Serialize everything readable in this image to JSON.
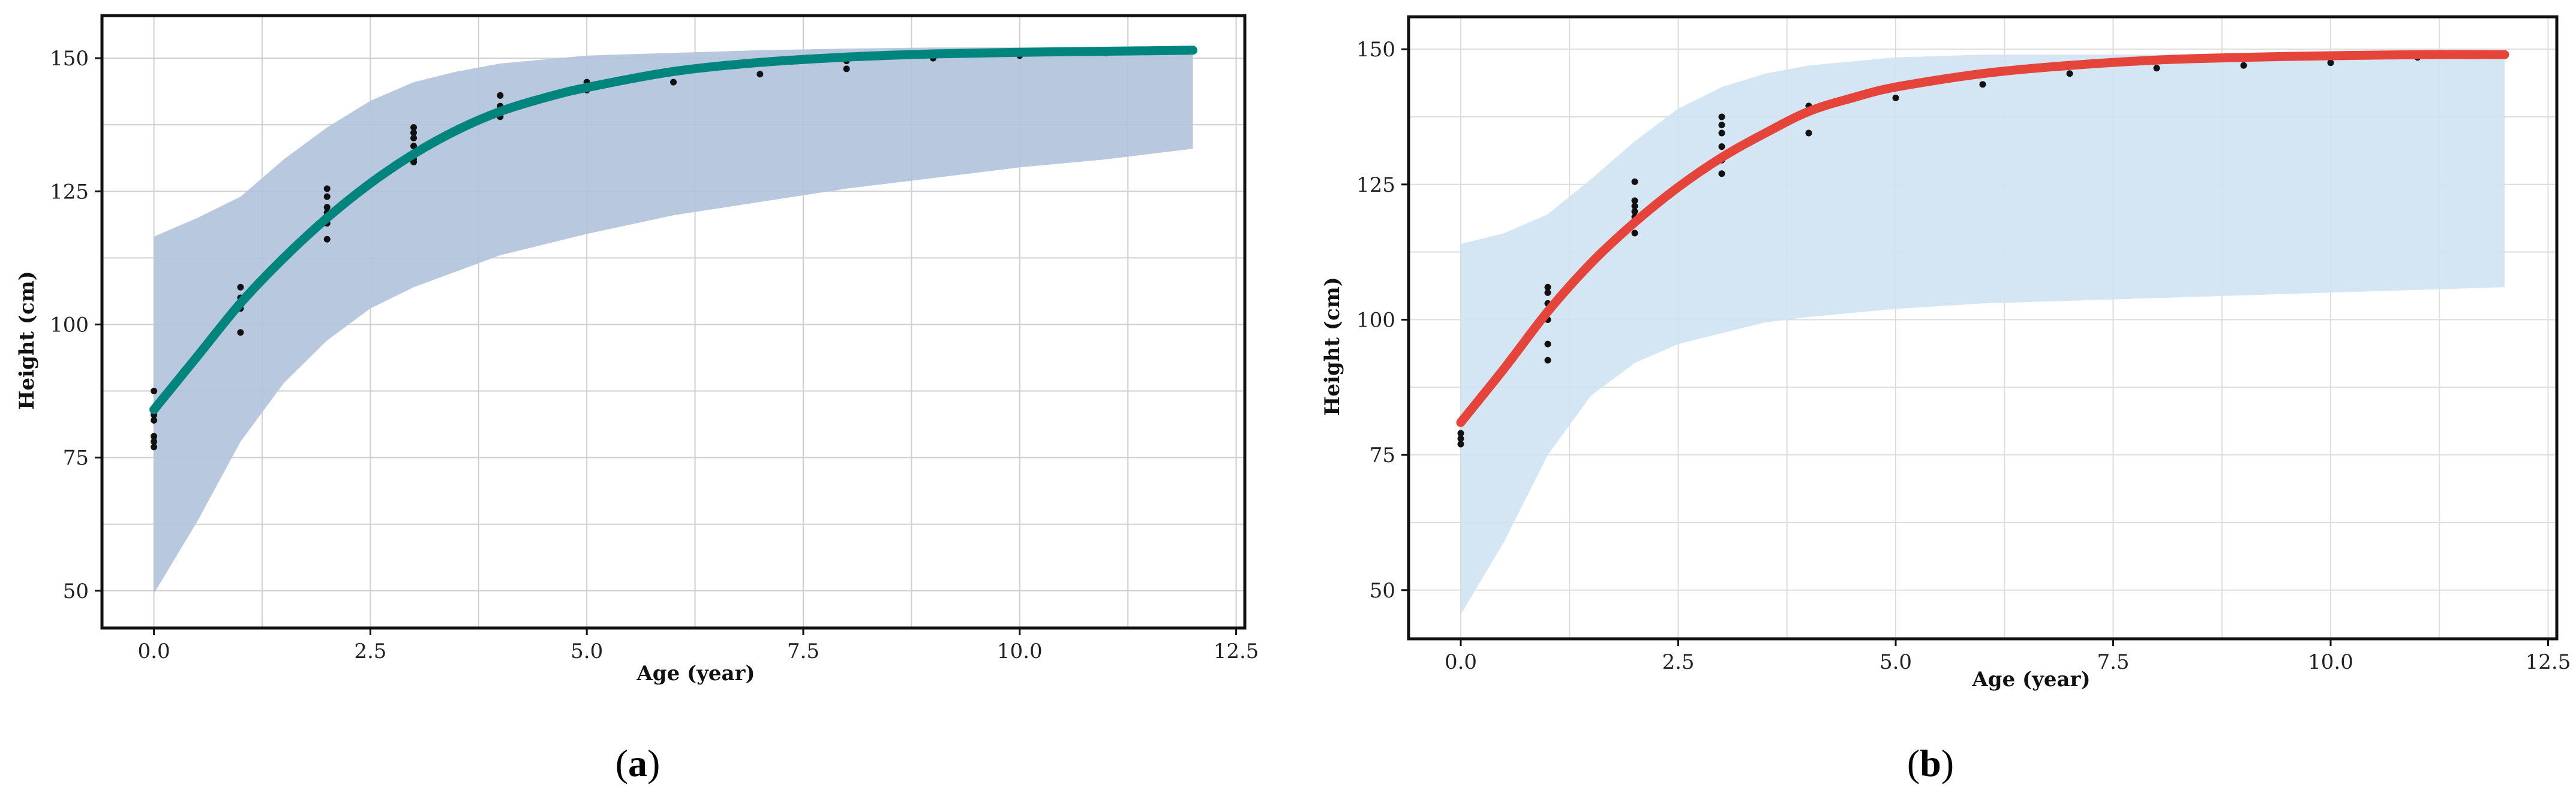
{
  "chart_data": [
    {
      "type": "line",
      "panel_label": "a",
      "xlabel": "Age (year)",
      "ylabel": "Height (cm)",
      "xlim": [
        -0.6,
        12.6
      ],
      "ylim": [
        43,
        158
      ],
      "xticks": [
        "0.0",
        "2.5",
        "5.0",
        "7.5",
        "10.0",
        "12.5"
      ],
      "yticks": [
        "50",
        "75",
        "100",
        "125",
        "150"
      ],
      "grid": true,
      "colors": {
        "line": "#00857e",
        "band": "#b0c2da",
        "points": "#111111",
        "frame": "#111111",
        "grid": "#cfcfcf"
      },
      "curve": {
        "x": [
          0,
          0.5,
          1,
          1.5,
          2,
          2.5,
          3,
          3.5,
          4,
          4.5,
          5,
          6,
          7,
          8,
          9,
          10,
          11,
          12
        ],
        "y": [
          84,
          94,
          104,
          112.5,
          120,
          126.5,
          132,
          136.5,
          140,
          142.5,
          144.5,
          147.5,
          149.2,
          150.2,
          150.8,
          151.1,
          151.3,
          151.5
        ]
      },
      "band": {
        "x": [
          0,
          0.5,
          1,
          1.5,
          2,
          2.5,
          3,
          3.5,
          4,
          5,
          6,
          7,
          8,
          9,
          10,
          11,
          12
        ],
        "upper": [
          116.5,
          120,
          124,
          131,
          137,
          142,
          145.5,
          147.5,
          149,
          150.5,
          151,
          151.5,
          151.8,
          152,
          152,
          152,
          152
        ],
        "lower": [
          49.5,
          63,
          78,
          89,
          97,
          103,
          107,
          110,
          113,
          117,
          120.5,
          123,
          125.5,
          127.5,
          129.5,
          131,
          133
        ]
      },
      "points": {
        "x": [
          0,
          0,
          0,
          0,
          0,
          0,
          0,
          1,
          1,
          1,
          1,
          1,
          2,
          2,
          2,
          2,
          2,
          2,
          2,
          3,
          3,
          3,
          3,
          3,
          3,
          3,
          4,
          4,
          4,
          4,
          5,
          5,
          6,
          6,
          7,
          7,
          8,
          8,
          9,
          10,
          11,
          12
        ],
        "y": [
          87.5,
          83,
          82,
          79,
          78,
          77,
          84,
          107,
          105,
          104,
          103,
          98.5,
          125.5,
          124,
          122,
          121,
          120,
          119,
          116,
          137,
          136,
          135,
          133.5,
          132,
          131,
          130.5,
          143,
          141,
          140,
          139,
          145.5,
          144,
          147.5,
          145.5,
          149,
          147,
          149.5,
          148,
          150,
          150.5,
          151,
          151.5
        ]
      }
    },
    {
      "type": "line",
      "panel_label": "b",
      "xlabel": "Age (year)",
      "ylabel": "Height (cm)",
      "xlim": [
        -0.6,
        12.6
      ],
      "ylim": [
        41,
        156
      ],
      "xticks": [
        "0.0",
        "2.5",
        "5.0",
        "7.5",
        "10.0",
        "12.5"
      ],
      "yticks": [
        "50",
        "75",
        "100",
        "125",
        "150"
      ],
      "grid": true,
      "colors": {
        "line": "#e5443a",
        "band": "#cfe3f3",
        "points": "#111111",
        "frame": "#111111",
        "grid": "#dddddd"
      },
      "curve": {
        "x": [
          0,
          0.5,
          1,
          1.5,
          2,
          2.5,
          3,
          3.5,
          4,
          4.5,
          5,
          6,
          7,
          8,
          9,
          10,
          11,
          12
        ],
        "y": [
          81,
          91,
          101.5,
          110.5,
          118,
          124.5,
          130,
          134.5,
          138.5,
          141,
          143,
          145.5,
          147,
          148,
          148.5,
          148.8,
          149,
          149
        ]
      },
      "band": {
        "x": [
          0,
          0.5,
          1,
          1.5,
          2,
          2.5,
          3,
          3.5,
          4,
          5,
          6,
          7,
          8,
          9,
          10,
          11,
          12
        ],
        "upper": [
          114,
          116,
          119.5,
          126,
          133,
          139,
          143,
          145.5,
          147,
          148.5,
          149,
          149,
          149,
          149,
          149,
          149,
          149
        ],
        "lower": [
          45.5,
          59,
          75,
          86,
          92,
          95.5,
          97.5,
          99.5,
          100.5,
          102,
          103,
          103.5,
          104,
          104.5,
          105,
          105.5,
          106
        ]
      },
      "points": {
        "x": [
          0,
          0,
          0,
          0,
          1,
          1,
          1,
          1,
          1,
          1,
          1,
          2,
          2,
          2,
          2,
          2,
          2,
          2,
          3,
          3,
          3,
          3,
          3,
          3,
          4,
          4,
          5,
          5,
          6,
          7,
          8,
          9,
          10,
          11,
          12
        ],
        "y": [
          81,
          79,
          78,
          77,
          106,
          105,
          103,
          101.5,
          100,
          95.5,
          92.5,
          125.5,
          122,
          121,
          120,
          119,
          118,
          116,
          137.5,
          136,
          134.5,
          132,
          129.5,
          127,
          139.5,
          134.5,
          143,
          141,
          143.5,
          145.5,
          146.5,
          147,
          147.5,
          148.5,
          149
        ]
      }
    }
  ]
}
